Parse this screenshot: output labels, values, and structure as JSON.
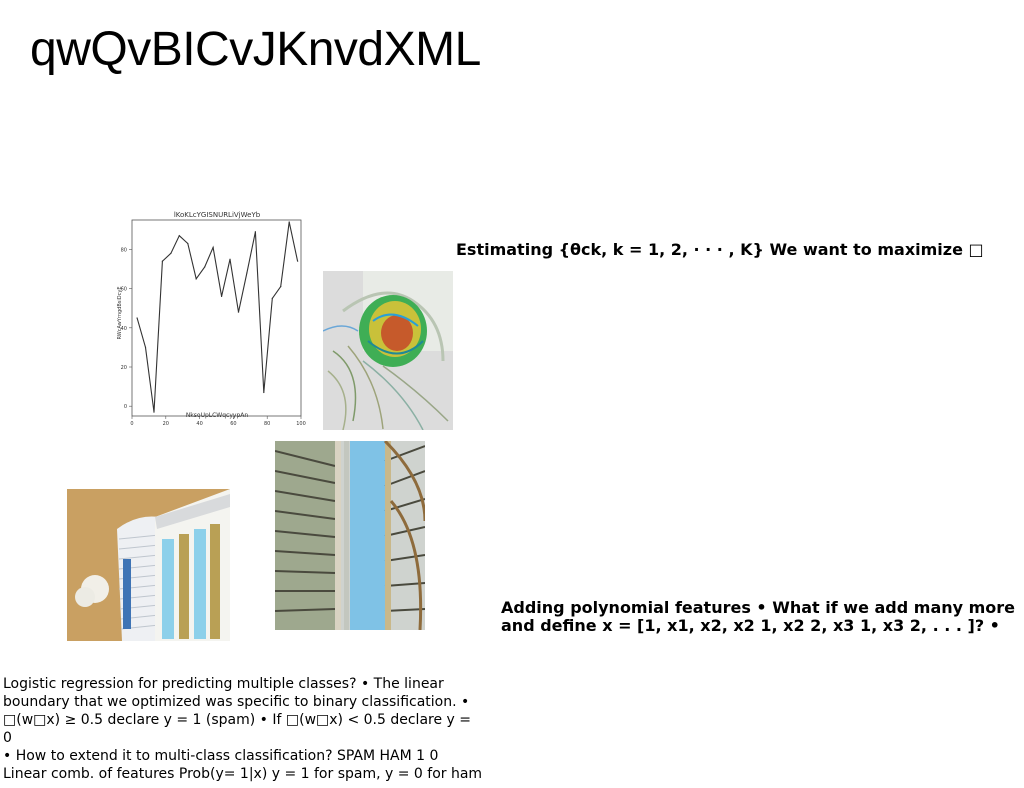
{
  "slide": {
    "title": "qwQvBICvJKnvdXML",
    "estimating_text": "Estimating {θck, k = 1, 2, · · · , K} We want to maximize □",
    "polynomial_line1": "Adding polynomial features • What if we add many more",
    "polynomial_line2": "and define x = [1, x1, x2, x2 1, x2 2, x3 1, x3 2, . . . ]? •",
    "body_lines": [
      "Logistic regression for predicting multiple classes? • The linear",
      "boundary that we optimized was specific to binary classification. •",
      "□(w□x) ≥ 0.5 declare y = 1 (spam) • If □(w□x) < 0.5 declare y = 0",
      "• How to extend it to multi-class classification? SPAM HAM 1 0",
      "Linear comb. of features Prob(y= 1|x) y = 1 for spam, y = 0 for ham"
    ]
  },
  "images": {
    "swirl": "abstract swirl image",
    "building": "white building facade",
    "staircase": "spiral staircase"
  },
  "chart_data": {
    "type": "line",
    "title": "lKoKLcYGISNURLiVjWeYb",
    "xlabel": "NksoUpLCWqcyypAn",
    "ylabel": "RWcAwYrngdBsiDcyE",
    "xlim": [
      0,
      100
    ],
    "ylim": [
      -5,
      95
    ],
    "xticks": [
      0,
      20,
      40,
      60,
      80,
      100
    ],
    "yticks": [
      0,
      20,
      40,
      60,
      80
    ],
    "grid": false,
    "color": "#333333",
    "x": [
      3,
      8,
      13,
      18,
      23,
      28,
      33,
      38,
      43,
      48,
      53,
      58,
      63,
      68,
      73,
      78,
      83,
      88,
      93,
      98
    ],
    "values": [
      45,
      30,
      -3,
      74,
      78,
      87,
      83,
      65,
      71,
      81,
      56,
      75,
      48,
      68,
      89,
      7,
      55,
      61,
      94,
      74
    ]
  }
}
